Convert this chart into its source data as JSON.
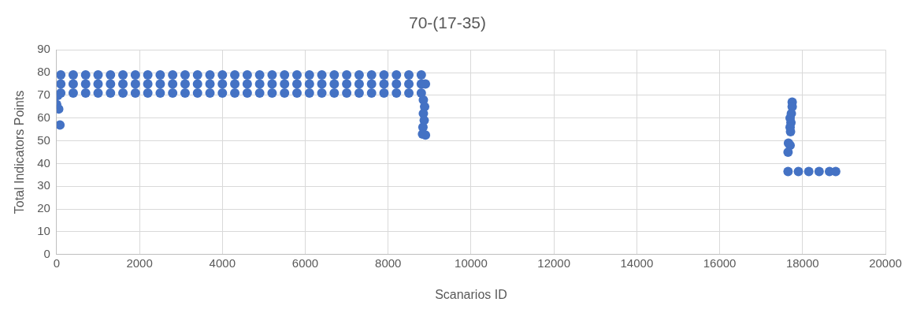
{
  "chart_data": {
    "type": "scatter",
    "title": "70-(17-35)",
    "xlabel": "Scanarios ID",
    "ylabel": "Total Indicators Points",
    "x": [
      100,
      100,
      100,
      400,
      400,
      400,
      700,
      700,
      700,
      1000,
      1000,
      1000,
      1300,
      1300,
      1300,
      1600,
      1600,
      1600,
      1900,
      1900,
      1900,
      2200,
      2200,
      2200,
      2500,
      2500,
      2500,
      2800,
      2800,
      2800,
      3100,
      3100,
      3100,
      3400,
      3400,
      3400,
      3700,
      3700,
      3700,
      4000,
      4000,
      4000,
      4300,
      4300,
      4300,
      4600,
      4600,
      4600,
      4900,
      4900,
      4900,
      5200,
      5200,
      5200,
      5500,
      5500,
      5500,
      5800,
      5800,
      5800,
      6100,
      6100,
      6100,
      6400,
      6400,
      6400,
      6700,
      6700,
      6700,
      7000,
      7000,
      7000,
      7300,
      7300,
      7300,
      7600,
      7600,
      7600,
      7900,
      7900,
      7900,
      8200,
      8200,
      8200,
      8500,
      8500,
      8500,
      8800,
      8800,
      8800,
      0,
      50,
      80,
      30,
      8850,
      8880,
      8850,
      8870,
      8840,
      8830,
      8900,
      8900,
      17750,
      17750,
      17730,
      17700,
      17720,
      17700,
      17710,
      17660,
      17700,
      17650,
      17650,
      17900,
      18150,
      18400,
      18650,
      18800
    ],
    "values": [
      79,
      75,
      71,
      79,
      75,
      71,
      79,
      75,
      71,
      79,
      75,
      71,
      79,
      75,
      71,
      79,
      75,
      71,
      79,
      75,
      71,
      79,
      75,
      71,
      79,
      75,
      71,
      79,
      75,
      71,
      79,
      75,
      71,
      79,
      75,
      71,
      79,
      75,
      71,
      79,
      75,
      71,
      79,
      75,
      71,
      79,
      75,
      71,
      79,
      75,
      71,
      79,
      75,
      71,
      79,
      75,
      71,
      79,
      75,
      71,
      79,
      75,
      71,
      79,
      75,
      71,
      79,
      75,
      71,
      79,
      75,
      71,
      79,
      75,
      71,
      79,
      75,
      71,
      79,
      75,
      71,
      79,
      75,
      71,
      79,
      75,
      71,
      79,
      75,
      71,
      66,
      64,
      57,
      70,
      68,
      65,
      62,
      59,
      56,
      53,
      52.5,
      75,
      67,
      65,
      62,
      60,
      58,
      56,
      54,
      49,
      48,
      45,
      36.5,
      36.5,
      36.5,
      36.5,
      36.5,
      36.5
    ],
    "color": "#4472c4",
    "marker": "circle",
    "xlim": [
      0,
      20000
    ],
    "xticks": [
      0,
      2000,
      4000,
      6000,
      8000,
      10000,
      12000,
      14000,
      16000,
      18000,
      20000
    ],
    "ylim": [
      0,
      90
    ],
    "yticks": [
      0,
      10,
      20,
      30,
      40,
      50,
      60,
      70,
      80,
      90
    ],
    "grid": true
  }
}
